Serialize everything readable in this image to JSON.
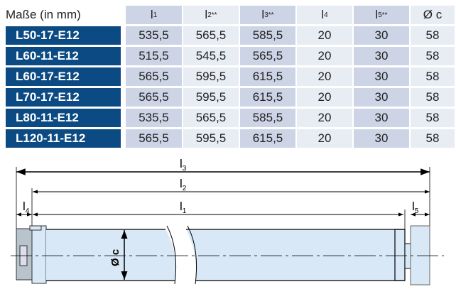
{
  "table": {
    "corner": "Maße (in mm)",
    "headers": [
      {
        "base": "l",
        "sub": "1",
        "sup": ""
      },
      {
        "base": "l",
        "sub": "2",
        "sup": "**"
      },
      {
        "base": "l",
        "sub": "3",
        "sup": "**"
      },
      {
        "base": "l",
        "sub": "4",
        "sup": ""
      },
      {
        "base": "l",
        "sub": "5",
        "sup": "**"
      },
      {
        "base": "Ø c",
        "sub": "",
        "sup": ""
      }
    ],
    "rows": [
      {
        "model": "L50-17-E12",
        "values": [
          "535,5",
          "565,5",
          "585,5",
          "20",
          "30",
          "58"
        ]
      },
      {
        "model": "L60-11-E12",
        "values": [
          "515,5",
          "545,5",
          "565,5",
          "20",
          "30",
          "58"
        ]
      },
      {
        "model": "L60-17-E12",
        "values": [
          "565,5",
          "595,5",
          "615,5",
          "20",
          "30",
          "58"
        ]
      },
      {
        "model": "L70-17-E12",
        "values": [
          "565,5",
          "595,5",
          "615,5",
          "20",
          "30",
          "58"
        ]
      },
      {
        "model": "L80-11-E12",
        "values": [
          "535,5",
          "565,5",
          "585,5",
          "20",
          "30",
          "58"
        ]
      },
      {
        "model": "L120-11-E12",
        "values": [
          "565,5",
          "595,5",
          "615,5",
          "20",
          "30",
          "58"
        ]
      }
    ]
  },
  "drawing": {
    "l3": "l",
    "l3sub": "3",
    "l2": "l",
    "l2sub": "2",
    "l1": "l",
    "l1sub": "1",
    "l4": "l",
    "l4sub": "4",
    "l5": "l",
    "l5sub": "5",
    "diameter": "Ø c"
  },
  "colors": {
    "label_bg": "#0b4a82",
    "tube": "#d8e8f6"
  }
}
